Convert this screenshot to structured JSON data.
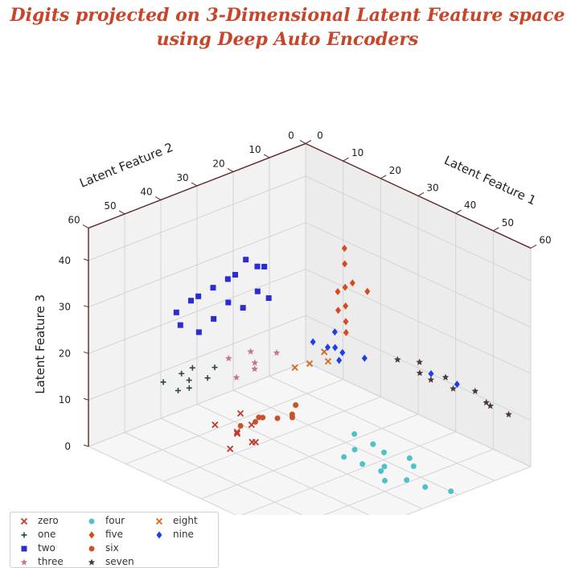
{
  "title": {
    "line1": "Digits projected on 3-Dimensional Latent Feature space",
    "line2": "using Deep Auto Encoders"
  },
  "chart_data": {
    "type": "scatter",
    "projection": "3d",
    "title": "Digits projected on 3-Dimensional Latent Feature space using Deep Auto Encoders",
    "xlabel": "Latent Feature 1",
    "ylabel": "Latent Feature 2",
    "zlabel": "Latent Feature 3",
    "xlim": [
      0,
      60
    ],
    "ylim": [
      0,
      60
    ],
    "zlim": [
      0,
      45
    ],
    "xticks": [
      "0",
      "10",
      "20",
      "30",
      "40",
      "50",
      "60"
    ],
    "yticks": [
      "0",
      "10",
      "20",
      "30",
      "40",
      "50",
      "60"
    ],
    "zticks": [
      "0",
      "10",
      "20",
      "30",
      "40"
    ],
    "grid": true,
    "legend_position": "bottom-left",
    "series": [
      {
        "name": "zero",
        "marker": "x",
        "color": "#c0392b",
        "points": [
          [
            28,
            48,
            10
          ],
          [
            30,
            50,
            11
          ],
          [
            32,
            47,
            9
          ],
          [
            26,
            52,
            12
          ],
          [
            33,
            49,
            10
          ],
          [
            29,
            45,
            11
          ],
          [
            31,
            53,
            9
          ],
          [
            27,
            46,
            13
          ]
        ]
      },
      {
        "name": "one",
        "marker": "plus",
        "color": "#2a4a3a",
        "points": [
          [
            20,
            52,
            22
          ],
          [
            22,
            55,
            21
          ],
          [
            18,
            58,
            20
          ],
          [
            24,
            50,
            23
          ],
          [
            21,
            57,
            19
          ],
          [
            19,
            54,
            21
          ],
          [
            25,
            53,
            22
          ],
          [
            23,
            56,
            20
          ]
        ]
      },
      {
        "name": "two",
        "marker": "square",
        "color": "#2b2bd8",
        "points": [
          [
            15,
            35,
            35
          ],
          [
            12,
            38,
            32
          ],
          [
            18,
            32,
            37
          ],
          [
            10,
            40,
            30
          ],
          [
            14,
            36,
            34
          ],
          [
            16,
            42,
            28
          ],
          [
            20,
            34,
            33
          ],
          [
            8,
            44,
            27
          ],
          [
            13,
            30,
            36
          ],
          [
            17,
            39,
            31
          ],
          [
            11,
            46,
            26
          ],
          [
            19,
            37,
            30
          ],
          [
            22,
            33,
            32
          ],
          [
            9,
            41,
            29
          ],
          [
            14,
            44,
            25
          ],
          [
            16,
            28,
            35
          ]
        ]
      },
      {
        "name": "three",
        "marker": "star",
        "color": "#c77592",
        "points": [
          [
            22,
            38,
            22
          ],
          [
            25,
            40,
            20
          ],
          [
            20,
            42,
            21
          ],
          [
            27,
            36,
            23
          ],
          [
            24,
            44,
            19
          ],
          [
            26,
            41,
            22
          ]
        ]
      },
      {
        "name": "four",
        "marker": "circle",
        "color": "#4fc1c9",
        "points": [
          [
            45,
            25,
            5
          ],
          [
            48,
            28,
            4
          ],
          [
            42,
            30,
            6
          ],
          [
            50,
            22,
            3
          ],
          [
            46,
            32,
            5
          ],
          [
            52,
            26,
            2
          ],
          [
            44,
            27,
            7
          ],
          [
            49,
            30,
            4
          ],
          [
            47,
            20,
            3
          ],
          [
            43,
            34,
            6
          ],
          [
            55,
            24,
            1
          ],
          [
            51,
            31,
            3
          ],
          [
            40,
            28,
            8
          ],
          [
            58,
            20,
            0
          ]
        ]
      },
      {
        "name": "five",
        "marker": "diamond",
        "color": "#d54a1e",
        "points": [
          [
            25,
            15,
            30
          ],
          [
            28,
            18,
            28
          ],
          [
            22,
            12,
            33
          ],
          [
            30,
            20,
            26
          ],
          [
            26,
            14,
            31
          ],
          [
            24,
            16,
            29
          ],
          [
            32,
            22,
            25
          ],
          [
            20,
            10,
            35
          ],
          [
            27,
            19,
            27
          ],
          [
            29,
            13,
            30
          ]
        ]
      },
      {
        "name": "six",
        "marker": "circle",
        "color": "#c9522a",
        "points": [
          [
            30,
            45,
            12
          ],
          [
            33,
            42,
            13
          ],
          [
            28,
            47,
            11
          ],
          [
            35,
            40,
            14
          ],
          [
            31,
            44,
            13
          ],
          [
            34,
            38,
            15
          ],
          [
            29,
            43,
            12
          ],
          [
            36,
            41,
            14
          ]
        ]
      },
      {
        "name": "seven",
        "marker": "star",
        "color": "#4a3a40",
        "points": [
          [
            40,
            10,
            18
          ],
          [
            45,
            8,
            16
          ],
          [
            50,
            5,
            14
          ],
          [
            42,
            12,
            17
          ],
          [
            55,
            6,
            13
          ],
          [
            48,
            9,
            15
          ],
          [
            38,
            14,
            19
          ],
          [
            52,
            4,
            12
          ],
          [
            44,
            11,
            16
          ],
          [
            57,
            3,
            11
          ]
        ]
      },
      {
        "name": "eight",
        "marker": "x",
        "color": "#d2691e",
        "points": [
          [
            30,
            30,
            20
          ],
          [
            33,
            28,
            21
          ],
          [
            28,
            32,
            19
          ],
          [
            31,
            27,
            22
          ]
        ]
      },
      {
        "name": "nine",
        "marker": "diamond",
        "color": "#1e3cf0",
        "points": [
          [
            30,
            25,
            22
          ],
          [
            32,
            23,
            21
          ],
          [
            28,
            27,
            23
          ],
          [
            35,
            20,
            20
          ],
          [
            31,
            24,
            22
          ],
          [
            34,
            26,
            21
          ],
          [
            29,
            22,
            24
          ],
          [
            45,
            12,
            18
          ],
          [
            50,
            10,
            17
          ]
        ]
      }
    ]
  },
  "legend": {
    "items": [
      {
        "label": "zero",
        "marker": "x",
        "color": "#c0392b"
      },
      {
        "label": "one",
        "marker": "plus",
        "color": "#2a4a3a"
      },
      {
        "label": "two",
        "marker": "square",
        "color": "#2b2bd8"
      },
      {
        "label": "three",
        "marker": "star",
        "color": "#c77592"
      },
      {
        "label": "four",
        "marker": "circle",
        "color": "#4fc1c9"
      },
      {
        "label": "five",
        "marker": "diamond",
        "color": "#d54a1e"
      },
      {
        "label": "six",
        "marker": "circle",
        "color": "#c9522a"
      },
      {
        "label": "seven",
        "marker": "star",
        "color": "#4a3a40"
      },
      {
        "label": "eight",
        "marker": "x",
        "color": "#d2691e"
      },
      {
        "label": "nine",
        "marker": "diamond",
        "color": "#1e3cf0"
      }
    ]
  }
}
